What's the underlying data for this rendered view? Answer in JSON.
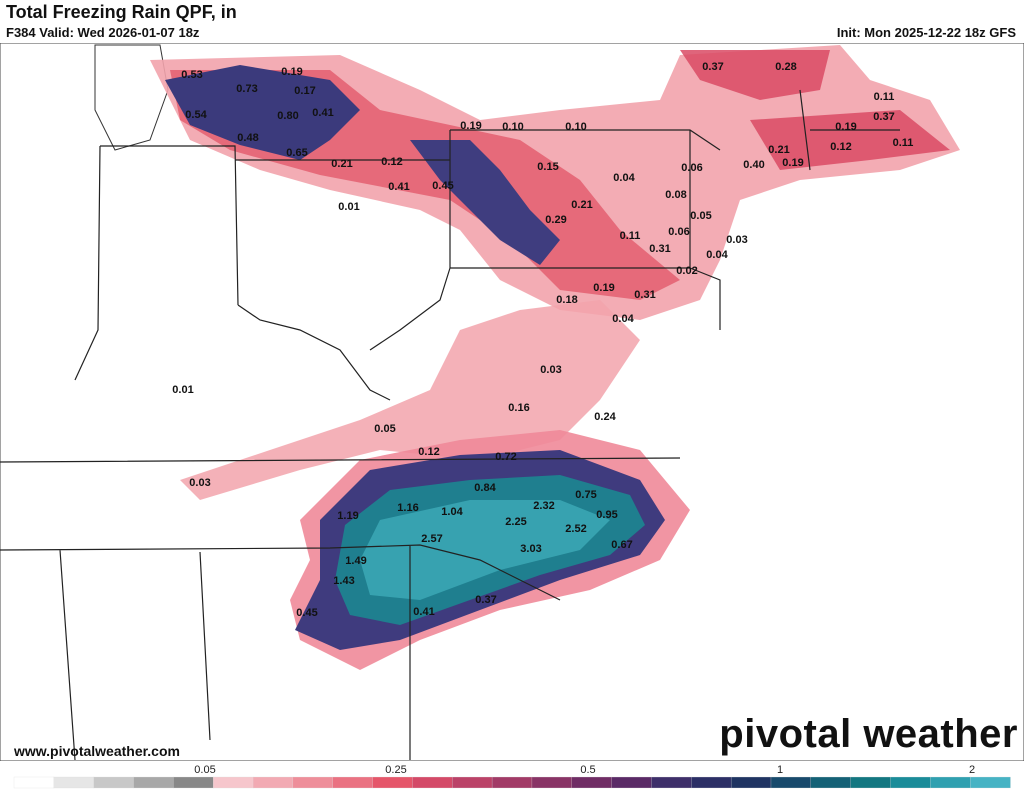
{
  "header": {
    "title": "Total Freezing Rain QPF, in",
    "valid": "F384 Valid: Wed 2026-01-07 18z",
    "init": "Init: Mon 2025-12-22 18z GFS"
  },
  "labels": [
    "0.53",
    "0.19",
    "0.73",
    "0.17",
    "0.54",
    "0.80",
    "0.41",
    "0.48",
    "0.65",
    "0.21",
    "0.12",
    "0.41",
    "0.45",
    "0.01",
    "0.19",
    "0.10",
    "0.10",
    "0.15",
    "0.04",
    "0.06",
    "0.08",
    "0.21",
    "0.29",
    "0.05",
    "0.06",
    "0.11",
    "0.03",
    "0.31",
    "0.04",
    "0.02",
    "0.19",
    "0.31",
    "0.18",
    "0.04",
    "0.37",
    "0.28",
    "0.11",
    "0.37",
    "0.19",
    "0.21",
    "0.12",
    "0.40",
    "0.19",
    "0.11",
    "0.01",
    "0.03",
    "0.16",
    "0.24",
    "0.05",
    "0.12",
    "0.72",
    "0.03",
    "0.84",
    "0.75",
    "1.16",
    "1.04",
    "2.32",
    "0.95",
    "1.19",
    "2.25",
    "2.52",
    "2.57",
    "3.03",
    "0.67",
    "1.49",
    "1.43",
    "0.37",
    "0.41",
    "0.45"
  ],
  "footer": {
    "url": "www.pivotalweather.com",
    "logo": "pivotal weather"
  },
  "legend": {
    "ticks": [
      "0.05",
      "0.25",
      "0.5",
      "1",
      "2"
    ]
  }
}
